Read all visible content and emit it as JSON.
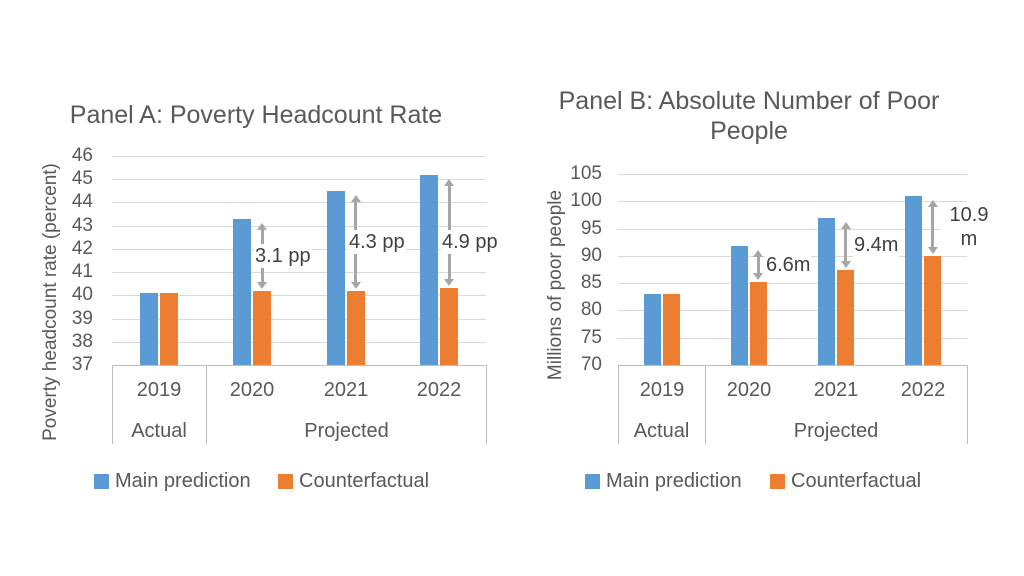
{
  "colors": {
    "main_prediction": "#5B9BD5",
    "counterfactual": "#ED7D31",
    "gridline": "#D9D9D9",
    "axis_border": "#BFBFBF",
    "arrow": "#A6A6A6",
    "text": "#595959",
    "annotation_text": "#404040"
  },
  "chart_data": [
    {
      "id": "panel-a",
      "type": "bar",
      "title": "Panel A: Poverty Headcount Rate",
      "ylabel": "Poverty headcount rate (percent)",
      "xlabel": "",
      "ylim": [
        37,
        46
      ],
      "ytick_step": 1,
      "grid": true,
      "legend_position": "bottom",
      "categories": [
        "2019",
        "2020",
        "2021",
        "2022"
      ],
      "group_labels": [
        {
          "label": "Actual",
          "span": 1
        },
        {
          "label": "Projected",
          "span": 3
        }
      ],
      "series": [
        {
          "name": "Main prediction",
          "color": "#5B9BD5",
          "values": [
            40.1,
            43.3,
            44.5,
            45.2
          ]
        },
        {
          "name": "Counterfactual",
          "color": "#ED7D31",
          "values": [
            40.1,
            40.2,
            40.2,
            40.3
          ]
        }
      ],
      "annotations": [
        {
          "category": "2020",
          "label": "3.1 pp",
          "from_series": "Main prediction",
          "to_series": "Counterfactual"
        },
        {
          "category": "2021",
          "label": "4.3 pp",
          "from_series": "Main prediction",
          "to_series": "Counterfactual"
        },
        {
          "category": "2022",
          "label": "4.9 pp",
          "from_series": "Main prediction",
          "to_series": "Counterfactual"
        }
      ]
    },
    {
      "id": "panel-b",
      "type": "bar",
      "title": "Panel B: Absolute Number of Poor People",
      "ylabel": "Millions of poor people",
      "xlabel": "",
      "ylim": [
        70,
        105
      ],
      "ytick_step": 5,
      "grid": true,
      "legend_position": "bottom",
      "categories": [
        "2019",
        "2020",
        "2021",
        "2022"
      ],
      "group_labels": [
        {
          "label": "Actual",
          "span": 1
        },
        {
          "label": "Projected",
          "span": 3
        }
      ],
      "series": [
        {
          "name": "Main prediction",
          "color": "#5B9BD5",
          "values": [
            83.0,
            91.8,
            96.9,
            100.9
          ]
        },
        {
          "name": "Counterfactual",
          "color": "#ED7D31",
          "values": [
            83.0,
            85.2,
            87.5,
            90.0
          ]
        }
      ],
      "annotations": [
        {
          "category": "2020",
          "label": "6.6m",
          "from_series": "Main prediction",
          "to_series": "Counterfactual"
        },
        {
          "category": "2021",
          "label": "9.4m",
          "from_series": "Main prediction",
          "to_series": "Counterfactual"
        },
        {
          "category": "2022",
          "label": "10.9 m",
          "from_series": "Main prediction",
          "to_series": "Counterfactual"
        }
      ]
    }
  ]
}
